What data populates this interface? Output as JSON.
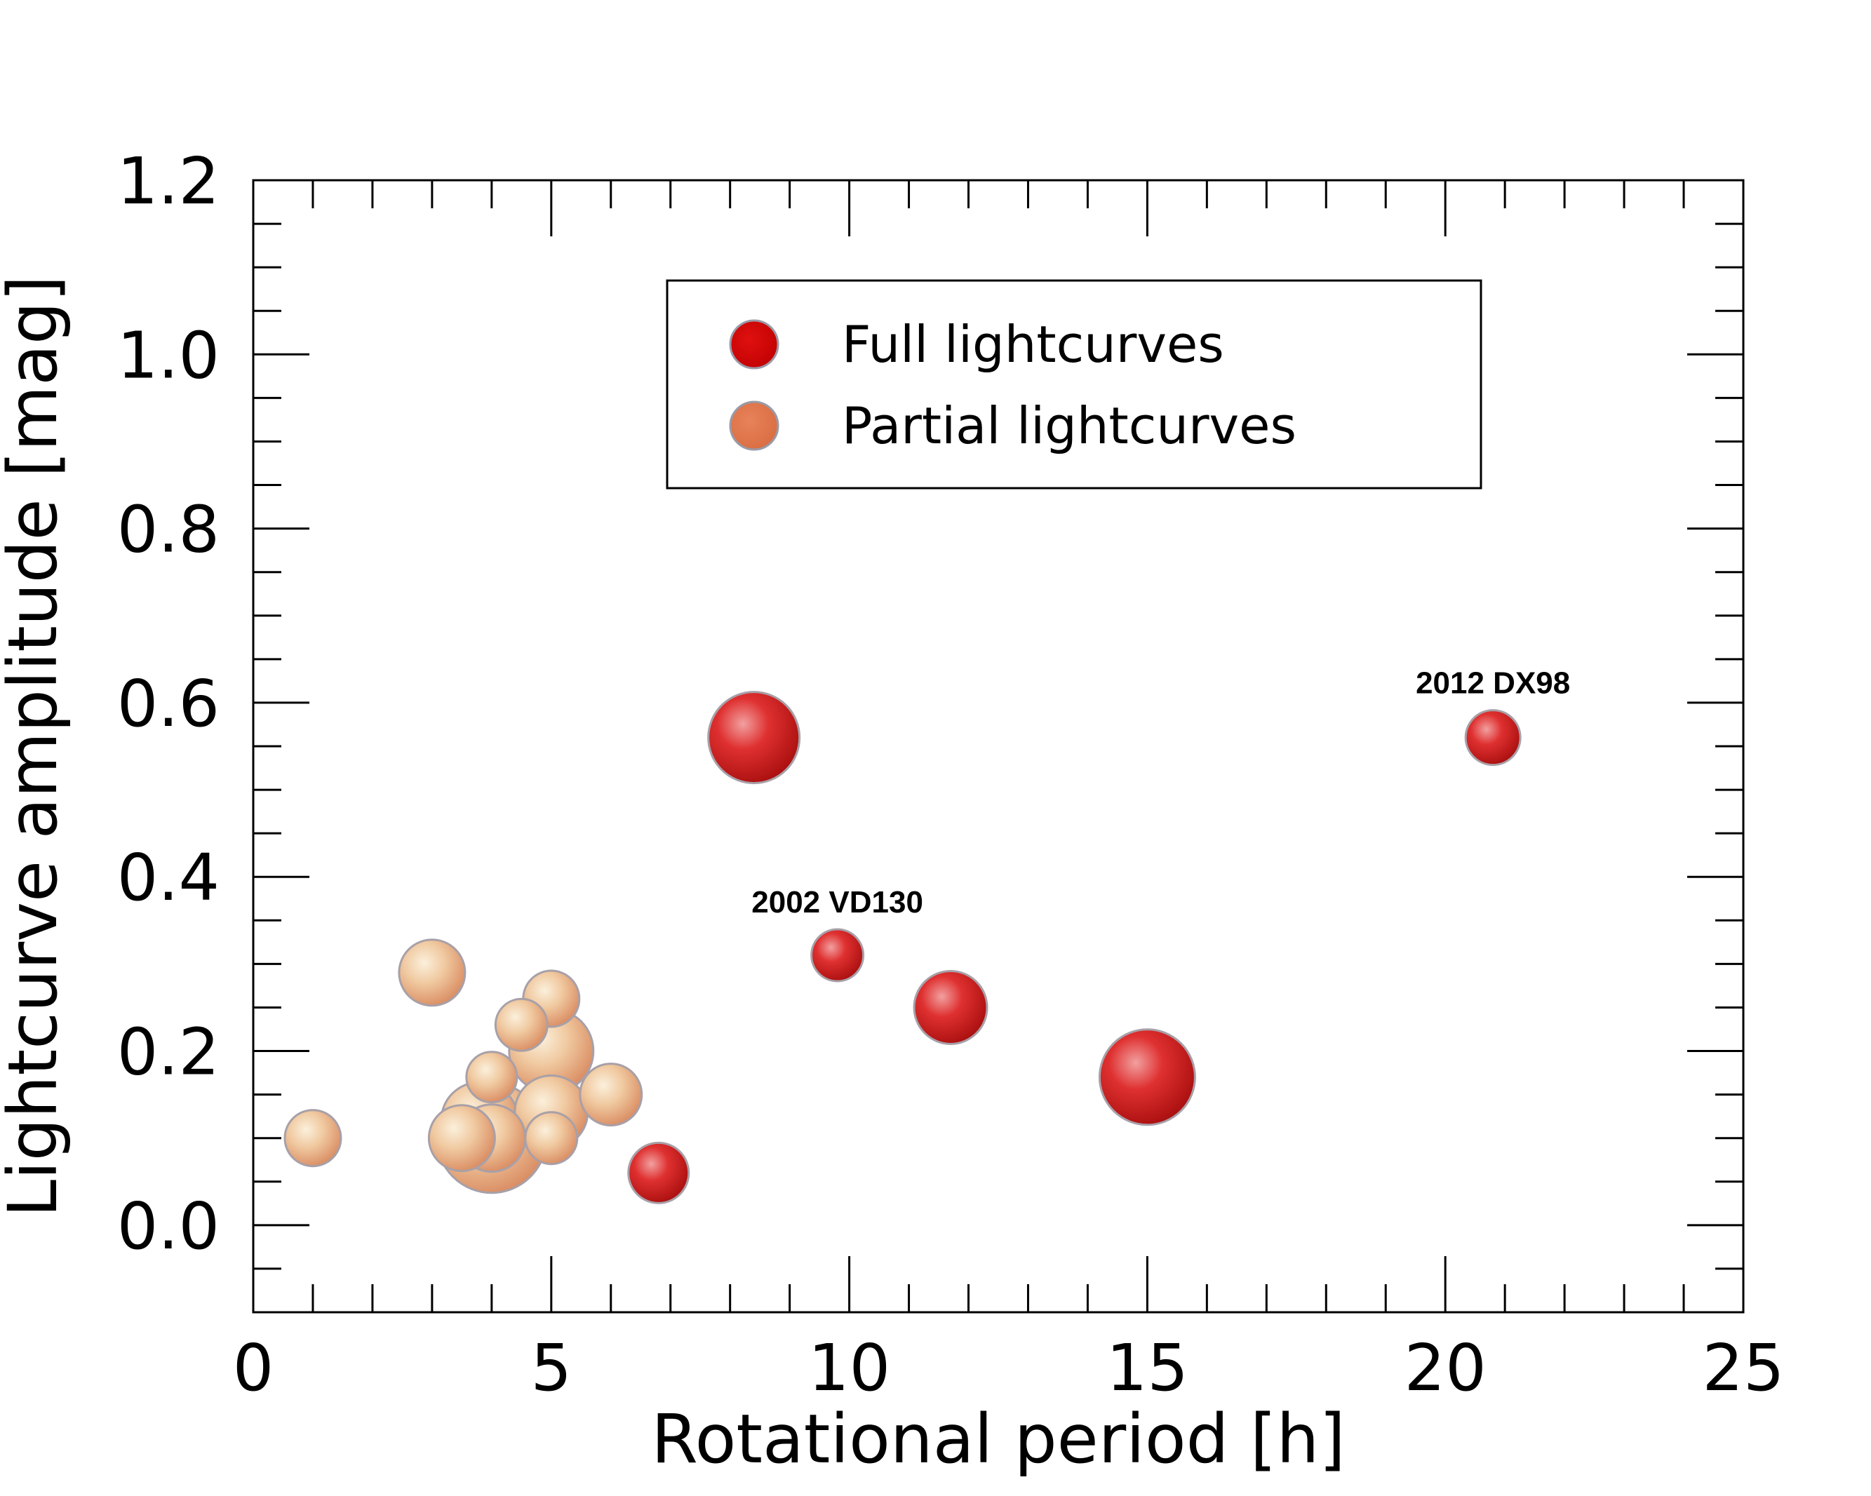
{
  "chart_data": {
    "type": "scatter",
    "title": "",
    "xlabel": "Rotational period [h]",
    "ylabel": "Lightcurve amplitude [mag]",
    "xlim": [
      0,
      25
    ],
    "ylim": [
      -0.1,
      1.2
    ],
    "x_ticks": [
      0,
      5,
      10,
      15,
      20,
      25
    ],
    "x_tick_labels": [
      "0",
      "5",
      "10",
      "15",
      "20",
      "25"
    ],
    "y_ticks": [
      0.0,
      0.2,
      0.4,
      0.6,
      0.8,
      1.0,
      1.2
    ],
    "y_tick_labels": [
      "0.0",
      "0.2",
      "0.4",
      "0.6",
      "0.8",
      "1.0",
      "1.2"
    ],
    "grid": false,
    "legend_position": "top-center",
    "series": [
      {
        "name": "Partial lightcurves",
        "color": "#e0956a",
        "points": [
          {
            "x": 1.0,
            "y": 0.1,
            "size": 40
          },
          {
            "x": 3.0,
            "y": 0.29,
            "size": 47
          },
          {
            "x": 3.5,
            "y": 0.1,
            "size": 47
          },
          {
            "x": 4.0,
            "y": 0.1,
            "size": 78
          },
          {
            "x": 3.8,
            "y": 0.12,
            "size": 55
          },
          {
            "x": 4.0,
            "y": 0.17,
            "size": 36
          },
          {
            "x": 4.5,
            "y": 0.23,
            "size": 37
          },
          {
            "x": 5.0,
            "y": 0.2,
            "size": 60
          },
          {
            "x": 5.0,
            "y": 0.26,
            "size": 40
          },
          {
            "x": 5.0,
            "y": 0.13,
            "size": 52
          },
          {
            "x": 5.0,
            "y": 0.1,
            "size": 37
          },
          {
            "x": 6.0,
            "y": 0.15,
            "size": 44
          },
          {
            "x": 4.0,
            "y": 0.1,
            "size": 48
          }
        ]
      },
      {
        "name": "Full lightcurves",
        "color": "#d41818",
        "points": [
          {
            "x": 6.8,
            "y": 0.06,
            "size": 43,
            "label": ""
          },
          {
            "x": 8.4,
            "y": 0.56,
            "size": 65,
            "label": ""
          },
          {
            "x": 9.8,
            "y": 0.31,
            "size": 37,
            "label": "2002 VD130"
          },
          {
            "x": 11.7,
            "y": 0.25,
            "size": 52,
            "label": ""
          },
          {
            "x": 15.0,
            "y": 0.17,
            "size": 68,
            "label": ""
          },
          {
            "x": 20.8,
            "y": 0.56,
            "size": 39,
            "label": "2012 DX98"
          }
        ]
      }
    ]
  }
}
